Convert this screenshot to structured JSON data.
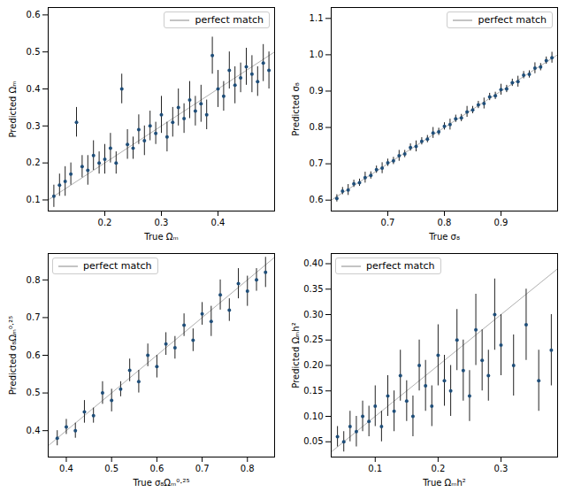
{
  "chart_data": [
    {
      "type": "scatter",
      "x_label": "True Ωₘ",
      "y_label": "Predicted Ωₘ",
      "color": "#1f4e79",
      "error_color": "#222222",
      "marker": "circle",
      "legend": "upper right",
      "xlim": [
        0.1,
        0.5
      ],
      "ylim": [
        0.07,
        0.62
      ],
      "xticks": [
        0.2,
        0.3,
        0.4
      ],
      "yticks": [
        0.1,
        0.2,
        0.3,
        0.4,
        0.5,
        0.6
      ],
      "x": [
        0.11,
        0.12,
        0.13,
        0.14,
        0.15,
        0.16,
        0.17,
        0.18,
        0.19,
        0.2,
        0.21,
        0.22,
        0.23,
        0.24,
        0.25,
        0.26,
        0.27,
        0.28,
        0.29,
        0.3,
        0.31,
        0.32,
        0.33,
        0.34,
        0.35,
        0.36,
        0.37,
        0.38,
        0.39,
        0.4,
        0.41,
        0.42,
        0.43,
        0.44,
        0.45,
        0.46,
        0.47,
        0.48,
        0.49
      ],
      "values": [
        0.11,
        0.14,
        0.15,
        0.17,
        0.31,
        0.19,
        0.18,
        0.22,
        0.2,
        0.21,
        0.24,
        0.2,
        0.4,
        0.25,
        0.24,
        0.29,
        0.26,
        0.3,
        0.28,
        0.33,
        0.27,
        0.31,
        0.35,
        0.32,
        0.37,
        0.34,
        0.36,
        0.33,
        0.49,
        0.4,
        0.38,
        0.45,
        0.41,
        0.43,
        0.46,
        0.44,
        0.42,
        0.47,
        0.45
      ],
      "errors": [
        0.03,
        0.03,
        0.04,
        0.03,
        0.04,
        0.03,
        0.04,
        0.04,
        0.03,
        0.04,
        0.04,
        0.03,
        0.04,
        0.04,
        0.03,
        0.04,
        0.04,
        0.04,
        0.03,
        0.05,
        0.04,
        0.04,
        0.05,
        0.04,
        0.05,
        0.04,
        0.05,
        0.04,
        0.05,
        0.05,
        0.04,
        0.05,
        0.05,
        0.04,
        0.05,
        0.05,
        0.04,
        0.05,
        0.05
      ],
      "reference_line": {
        "name": "perfect match",
        "color": "#b0b0b0",
        "x": [
          0.1,
          0.5
        ],
        "values": [
          0.1,
          0.5
        ]
      }
    },
    {
      "type": "scatter",
      "x_label": "True σ₈",
      "y_label": "Predicted σ₈",
      "color": "#1f4e79",
      "error_color": "#222222",
      "marker": "circle",
      "legend": "upper right",
      "xlim": [
        0.6,
        1.0
      ],
      "ylim": [
        0.57,
        1.13
      ],
      "xticks": [
        0.7,
        0.8,
        0.9
      ],
      "yticks": [
        0.6,
        0.7,
        0.8,
        0.9,
        {
          "value": 1,
          "label": "1.0"
        },
        1.1
      ],
      "x": [
        0.61,
        0.62,
        0.63,
        0.64,
        0.65,
        0.66,
        0.67,
        0.68,
        0.69,
        0.7,
        0.71,
        0.72,
        0.73,
        0.74,
        0.75,
        0.76,
        0.77,
        0.78,
        0.79,
        0.8,
        0.81,
        0.82,
        0.83,
        0.84,
        0.85,
        0.86,
        0.87,
        0.88,
        0.89,
        0.9,
        0.91,
        0.92,
        0.93,
        0.94,
        0.95,
        0.96,
        0.97,
        0.98,
        0.99
      ],
      "values": [
        0.605,
        0.625,
        0.628,
        0.645,
        0.648,
        0.662,
        0.668,
        0.684,
        0.688,
        0.703,
        0.708,
        0.722,
        0.727,
        0.745,
        0.748,
        0.762,
        0.768,
        0.785,
        0.788,
        0.803,
        0.808,
        0.824,
        0.826,
        0.843,
        0.848,
        0.862,
        0.866,
        0.884,
        0.887,
        0.904,
        0.906,
        0.923,
        0.926,
        0.944,
        0.946,
        0.963,
        0.966,
        0.984,
        0.992
      ],
      "errors": [
        0.01,
        0.01,
        0.015,
        0.01,
        0.01,
        0.015,
        0.01,
        0.01,
        0.015,
        0.01,
        0.01,
        0.015,
        0.01,
        0.01,
        0.015,
        0.01,
        0.01,
        0.015,
        0.01,
        0.01,
        0.015,
        0.01,
        0.01,
        0.015,
        0.01,
        0.01,
        0.015,
        0.01,
        0.01,
        0.015,
        0.01,
        0.01,
        0.015,
        0.01,
        0.01,
        0.015,
        0.01,
        0.01,
        0.015
      ],
      "reference_line": {
        "name": "perfect match",
        "color": "#b0b0b0",
        "x": [
          0.6,
          1.0
        ],
        "values": [
          0.6,
          1.0
        ]
      }
    },
    {
      "type": "scatter",
      "x_label": "True σ₈Ωₘ⁰·²⁵",
      "y_label": "Predicted σ₈Ωₘ⁰·²⁵",
      "color": "#1f4e79",
      "error_color": "#222222",
      "marker": "circle",
      "legend": "upper left",
      "xlim": [
        0.36,
        0.86
      ],
      "ylim": [
        0.33,
        0.87
      ],
      "xticks": [
        0.4,
        0.5,
        0.6,
        0.7,
        0.8
      ],
      "yticks": [
        0.4,
        0.5,
        0.6,
        0.7,
        0.8
      ],
      "x": [
        0.38,
        0.4,
        0.42,
        0.44,
        0.46,
        0.48,
        0.5,
        0.52,
        0.54,
        0.56,
        0.58,
        0.6,
        0.62,
        0.64,
        0.66,
        0.68,
        0.7,
        0.72,
        0.74,
        0.76,
        0.78,
        0.8,
        0.82,
        0.84
      ],
      "values": [
        0.38,
        0.41,
        0.4,
        0.45,
        0.44,
        0.5,
        0.48,
        0.51,
        0.56,
        0.53,
        0.6,
        0.57,
        0.63,
        0.62,
        0.68,
        0.64,
        0.71,
        0.69,
        0.76,
        0.72,
        0.79,
        0.77,
        0.8,
        0.82
      ],
      "errors": [
        0.02,
        0.02,
        0.02,
        0.03,
        0.02,
        0.03,
        0.03,
        0.02,
        0.03,
        0.03,
        0.03,
        0.03,
        0.03,
        0.03,
        0.03,
        0.03,
        0.03,
        0.04,
        0.04,
        0.03,
        0.04,
        0.04,
        0.03,
        0.04
      ],
      "reference_line": {
        "name": "perfect match",
        "color": "#b0b0b0",
        "x": [
          0.36,
          0.86
        ],
        "values": [
          0.36,
          0.86
        ]
      }
    },
    {
      "type": "scatter",
      "x_label": "True Ωₘh²",
      "y_label": "Predicted Ωₘh²",
      "color": "#1f4e79",
      "error_color": "#222222",
      "marker": "circle",
      "legend": "upper left",
      "xlim": [
        0.03,
        0.39
      ],
      "ylim": [
        0.02,
        0.42
      ],
      "xticks": [
        0.1,
        0.2,
        0.3
      ],
      "yticks": [
        0.05,
        {
          "value": 0.1,
          "label": "0.10"
        },
        0.15,
        {
          "value": 0.2,
          "label": "0.20"
        },
        0.25,
        {
          "value": 0.3,
          "label": "0.30"
        },
        0.35,
        {
          "value": 0.4,
          "label": "0.40"
        }
      ],
      "x": [
        0.04,
        0.05,
        0.06,
        0.07,
        0.08,
        0.09,
        0.1,
        0.11,
        0.12,
        0.13,
        0.14,
        0.15,
        0.16,
        0.17,
        0.18,
        0.19,
        0.2,
        0.21,
        0.22,
        0.23,
        0.24,
        0.25,
        0.26,
        0.27,
        0.28,
        0.29,
        0.3,
        0.32,
        0.34,
        0.36,
        0.38
      ],
      "values": [
        0.06,
        0.05,
        0.08,
        0.07,
        0.1,
        0.09,
        0.12,
        0.08,
        0.14,
        0.11,
        0.18,
        0.13,
        0.1,
        0.2,
        0.16,
        0.12,
        0.22,
        0.17,
        0.15,
        0.25,
        0.19,
        0.14,
        0.27,
        0.21,
        0.18,
        0.3,
        0.24,
        0.2,
        0.28,
        0.17,
        0.23
      ],
      "errors": [
        0.02,
        0.02,
        0.03,
        0.03,
        0.03,
        0.03,
        0.04,
        0.03,
        0.04,
        0.04,
        0.05,
        0.04,
        0.04,
        0.05,
        0.05,
        0.04,
        0.06,
        0.05,
        0.05,
        0.06,
        0.06,
        0.05,
        0.07,
        0.06,
        0.05,
        0.07,
        0.06,
        0.06,
        0.07,
        0.06,
        0.07
      ],
      "reference_line": {
        "name": "perfect match",
        "color": "#b0b0b0",
        "x": [
          0.03,
          0.39
        ],
        "values": [
          0.03,
          0.39
        ]
      }
    }
  ]
}
